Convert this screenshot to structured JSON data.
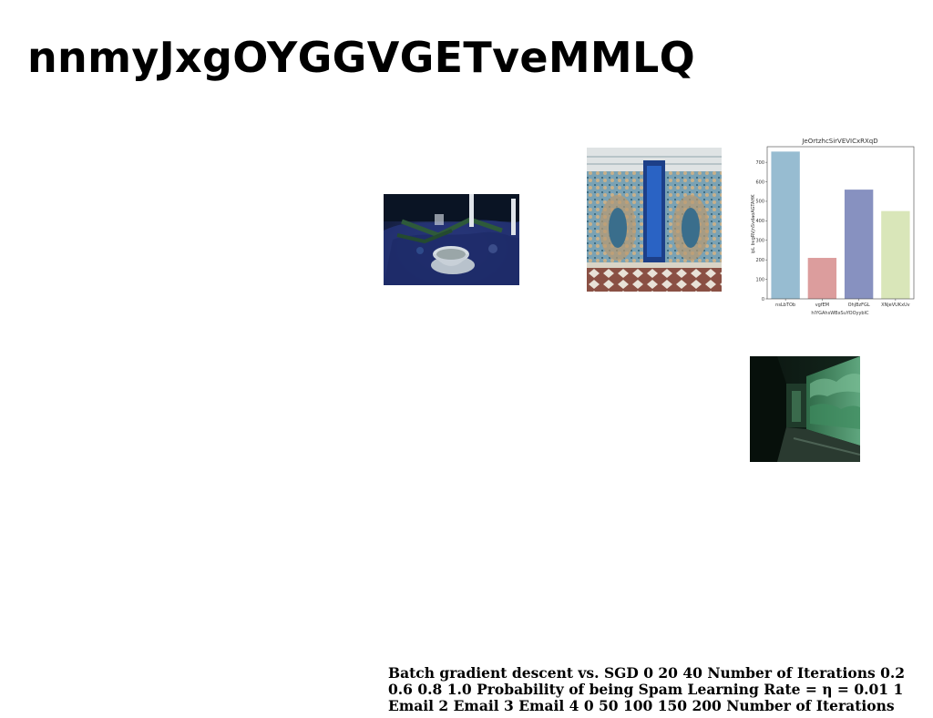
{
  "page": {
    "title": "nnmyJxgOYGGVGETveMMLQ"
  },
  "images": {
    "table_scene": {
      "icon": "photo-blue-table-teacup"
    },
    "mosaic_wall": {
      "icon": "photo-moroccan-mosaic-doorway"
    },
    "hallway": {
      "icon": "photo-dark-green-corridor"
    }
  },
  "chart_data": {
    "type": "bar",
    "title": "JeOrtzhcSirVEVICxRXqD",
    "xlabel": "hIYGAhsWBxSuYOOyybIC",
    "ylabel": "ipL bvgRVjnSvdaoAGTAHK",
    "categories": [
      "nsLbTOb",
      "vgfEM",
      "OhjBzFGL",
      "XNjeVUKxUv"
    ],
    "values": [
      755,
      210,
      560,
      450
    ],
    "colors": [
      "#97bcd1",
      "#dc9d9d",
      "#8791c0",
      "#d9e6b9"
    ],
    "ylim": [
      0,
      780
    ],
    "yticks": [
      "0",
      "100",
      "200",
      "300",
      "400",
      "500",
      "600",
      "700"
    ],
    "grid": false
  },
  "caption": {
    "text": "Batch gradient descent vs. SGD 0 20 40 Number of Iterations 0.2 0.6 0.8 1.0 Probability of being Spam Learning Rate = η = 0.01 1 Email 2 Email 3 Email 4 0 50 100 150 200 Number of Iterations"
  }
}
